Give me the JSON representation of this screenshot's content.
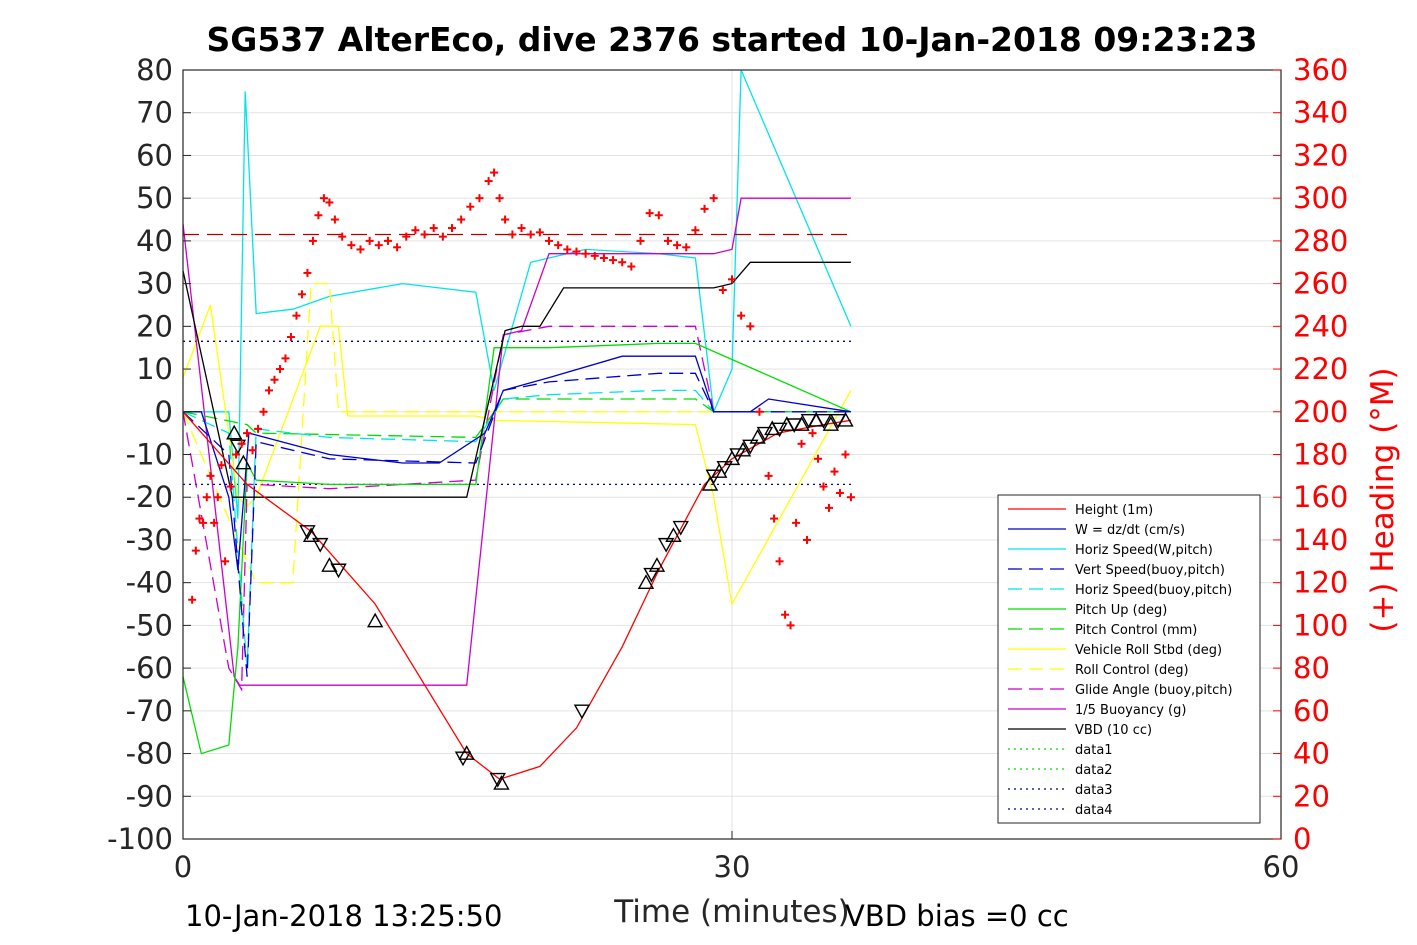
{
  "chart_data": {
    "type": "line",
    "title": "SG537 AlterEco, dive 2376 started 10-Jan-2018 09:23:23",
    "xlabel": "Time (minutes)",
    "ylabel_right": "(+) Heading (°M)",
    "footer_left": "10-Jan-2018 13:25:50",
    "footer_right": "VBD bias =0 cc",
    "xlim": [
      0,
      60
    ],
    "ylim": [
      -100,
      80
    ],
    "ylim_right": [
      0,
      360
    ],
    "x_ticks": [
      "0",
      "30",
      "60"
    ],
    "y_ticks": [
      "80",
      "70",
      "60",
      "50",
      "40",
      "30",
      "20",
      "10",
      "0",
      "-10",
      "-20",
      "-30",
      "-40",
      "-50",
      "-60",
      "-70",
      "-80",
      "-90",
      "-100"
    ],
    "y_ticks_right": [
      "360",
      "340",
      "320",
      "300",
      "280",
      "260",
      "240",
      "220",
      "200",
      "180",
      "160",
      "140",
      "120",
      "100",
      "80",
      "60",
      "40",
      "20",
      "0"
    ],
    "grid": true,
    "legend_position": "bottom-right",
    "colors": {
      "height": "#ff0000",
      "w": "#0000cc",
      "horiz_speed": "#00e5e5",
      "pitch": "#00dd00",
      "roll": "#ffff00",
      "glide": "#cc00cc",
      "buoyancy": "#cc00cc",
      "vbd": "#000000",
      "heading": "#ff0000"
    },
    "series": [
      {
        "name": "Height (1m)",
        "x": [
          0,
          3.5,
          7,
          10.5,
          15.5,
          17.3,
          19.5,
          21.5,
          24,
          26,
          28.5,
          30,
          32.5,
          35,
          36.5
        ],
        "y": [
          0,
          -17,
          -28,
          -45,
          -80,
          -86,
          -83,
          -74,
          -55,
          -37,
          -17,
          -11,
          -5,
          -3,
          -2
        ]
      },
      {
        "name": "W = dz/dt (cm/s)",
        "x": [
          0,
          1,
          2.5,
          3,
          3.6,
          8,
          12,
          14,
          16.5,
          17.5,
          20,
          24,
          28,
          29,
          31,
          32,
          36.5
        ],
        "y": [
          0,
          0,
          -20,
          -37,
          -5,
          -10,
          -12,
          -12,
          -5,
          5,
          8,
          13,
          13,
          0,
          0,
          3,
          0
        ]
      },
      {
        "name": "Horiz Speed(W,pitch)",
        "x": [
          0,
          2.5,
          3,
          3.4,
          4,
          6,
          8,
          12,
          16,
          17,
          19,
          22,
          26,
          28,
          29,
          30,
          30.5,
          36.5
        ],
        "y": [
          0,
          0,
          -25,
          75,
          23,
          24,
          27,
          30,
          28,
          5,
          35,
          38,
          37,
          36,
          0,
          10,
          80,
          20
        ]
      },
      {
        "name": "Vert Speed(buoy,pitch)",
        "x": [
          0,
          2.5,
          3.5,
          4,
          8,
          16,
          17.5,
          20,
          26,
          28,
          29,
          36.5
        ],
        "y": [
          0,
          -10,
          -62,
          -7,
          -11,
          -12,
          5,
          7,
          9,
          9,
          0,
          0
        ]
      },
      {
        "name": "Horiz Speed(buoy,pitch)",
        "x": [
          0,
          2.5,
          3.5,
          4,
          8,
          16,
          17.5,
          20,
          26,
          28,
          29,
          36.5
        ],
        "y": [
          0,
          -5,
          -60,
          -4,
          -6,
          -7,
          3,
          4,
          5,
          5,
          0,
          0
        ]
      },
      {
        "name": "Pitch Up (deg)",
        "x": [
          0,
          1,
          2.5,
          3,
          3.5,
          4,
          8,
          16,
          17,
          20,
          26,
          28,
          36.5
        ],
        "y": [
          -62,
          -80,
          -78,
          -55,
          -12,
          -16,
          -17,
          -17,
          15,
          15,
          16,
          16,
          0
        ]
      },
      {
        "name": "Pitch Control (mm)",
        "x": [
          0,
          3.5,
          4,
          16,
          17.5,
          28,
          29,
          36.5
        ],
        "y": [
          0,
          -3,
          -5,
          -6,
          3,
          3,
          0,
          0
        ]
      },
      {
        "name": "Vehicle Roll Stbd (deg)",
        "x": [
          0,
          1.5,
          3,
          3.5,
          4,
          7.5,
          8.5,
          9,
          16,
          17,
          28,
          29,
          30,
          36.5
        ],
        "y": [
          8,
          25,
          -20,
          -22,
          -20,
          20,
          20,
          -1,
          -1,
          -2,
          -3,
          -20,
          -45,
          5
        ]
      },
      {
        "name": "Roll Control (deg)",
        "x": [
          0,
          4,
          6,
          7,
          8,
          8.5,
          16,
          20,
          28,
          36.5
        ],
        "y": [
          0,
          -40,
          -40,
          30,
          30,
          0,
          0,
          0,
          0,
          0
        ]
      },
      {
        "name": "Glide Angle (buoy,pitch)",
        "x": [
          0,
          2.5,
          3.2,
          3.5,
          4,
          8,
          16,
          17.5,
          20,
          28,
          29,
          36.5
        ],
        "y": [
          0,
          -60,
          -65,
          -17,
          -17,
          -18,
          -16,
          18,
          20,
          20,
          0,
          0
        ]
      },
      {
        "name": "1/5 Buoyancy (g)",
        "x": [
          0,
          2.8,
          3.1,
          6,
          10,
          15.5,
          17.5,
          18.5,
          20,
          26,
          28,
          29,
          30,
          30.5,
          36.5
        ],
        "y": [
          44,
          -62,
          -64,
          -64,
          -64,
          -64,
          18,
          19,
          37,
          37,
          37,
          37,
          38,
          50,
          50
        ]
      },
      {
        "name": "VBD (10 cc)",
        "x": [
          0,
          2.7,
          3.5,
          8,
          15.5,
          17.6,
          18.5,
          19.5,
          20.8,
          27,
          29,
          30,
          31,
          36.5
        ],
        "y": [
          33,
          -20,
          -20,
          -20,
          -20,
          19,
          20,
          20,
          29,
          29,
          29,
          30,
          35,
          35
        ]
      },
      {
        "name": "data1",
        "x": [],
        "y": []
      },
      {
        "name": "data2",
        "x": [],
        "y": []
      },
      {
        "name": "data3",
        "x": [
          0,
          36.5
        ],
        "y": [
          16.5,
          16.5
        ]
      },
      {
        "name": "data4",
        "x": [
          0,
          36.5
        ],
        "y": [
          -17,
          -17
        ]
      }
    ],
    "heading_points": {
      "x": [
        0.5,
        0.7,
        0.9,
        1.1,
        1.3,
        1.5,
        1.7,
        1.9,
        2.1,
        2.3,
        2.6,
        2.9,
        3.2,
        3.5,
        3.8,
        4.1,
        4.4,
        4.7,
        5.0,
        5.3,
        5.6,
        5.9,
        6.2,
        6.5,
        6.8,
        7.1,
        7.4,
        7.7,
        8.0,
        8.3,
        8.7,
        9.2,
        9.7,
        10.2,
        10.7,
        11.2,
        11.7,
        12.2,
        12.7,
        13.2,
        13.7,
        14.2,
        14.7,
        15.2,
        15.7,
        16.2,
        16.7,
        17.0,
        17.3,
        17.6,
        18.0,
        18.5,
        19.0,
        19.5,
        20.0,
        20.5,
        21.0,
        21.5,
        22.0,
        22.5,
        23.0,
        23.5,
        24.0,
        24.5,
        25.0,
        25.5,
        26.0,
        26.5,
        27.0,
        27.5,
        28.0,
        28.5,
        29.0,
        29.5,
        30.0,
        30.5,
        31.0,
        31.5,
        32.0,
        32.3,
        32.6,
        32.9,
        33.2,
        33.5,
        33.8,
        34.1,
        34.4,
        34.7,
        35.0,
        35.3,
        35.6,
        35.9,
        36.2,
        36.5
      ],
      "y": [
        112,
        135,
        150,
        148,
        160,
        170,
        148,
        160,
        175,
        130,
        165,
        180,
        185,
        190,
        182,
        192,
        200,
        210,
        215,
        220,
        225,
        235,
        245,
        255,
        265,
        280,
        292,
        300,
        298,
        290,
        282,
        278,
        276,
        280,
        278,
        280,
        277,
        282,
        285,
        283,
        286,
        282,
        286,
        290,
        296,
        300,
        308,
        312,
        300,
        290,
        283,
        286,
        283,
        284,
        280,
        278,
        276,
        275,
        274,
        273,
        272,
        271,
        270,
        268,
        280,
        293,
        292,
        280,
        278,
        277,
        285,
        295,
        300,
        257,
        262,
        245,
        240,
        200,
        170,
        150,
        130,
        105,
        100,
        148,
        185,
        140,
        190,
        178,
        165,
        155,
        172,
        162,
        180,
        160
      ]
    },
    "depth_markers": {
      "x": [
        2.8,
        3.0,
        3.3,
        6.8,
        7.0,
        7.5,
        8.0,
        8.5,
        10.5,
        15.3,
        15.5,
        17.2,
        17.4,
        21.8,
        25.3,
        25.6,
        25.9,
        26.4,
        26.8,
        27.2,
        28.8,
        29.0,
        29.3,
        29.6,
        30.0,
        30.3,
        30.6,
        31.0,
        31.4,
        31.8,
        32.2,
        32.6,
        33.0,
        33.4,
        33.8,
        34.2,
        34.6,
        35.0,
        35.4,
        35.8,
        36.2
      ],
      "y": [
        -5,
        -8,
        -12,
        -28,
        -29,
        -31,
        -36,
        -37,
        -49,
        -81,
        -80,
        -86,
        -87,
        -70,
        -40,
        -38,
        -36,
        -31,
        -29,
        -27,
        -17,
        -15,
        -14,
        -13,
        -11,
        -10,
        -9,
        -8,
        -6,
        -5,
        -4,
        -4,
        -3,
        -3,
        -3,
        -2,
        -2,
        -2,
        -3,
        -2,
        -2
      ]
    },
    "heading_ref_y": 41.5
  }
}
